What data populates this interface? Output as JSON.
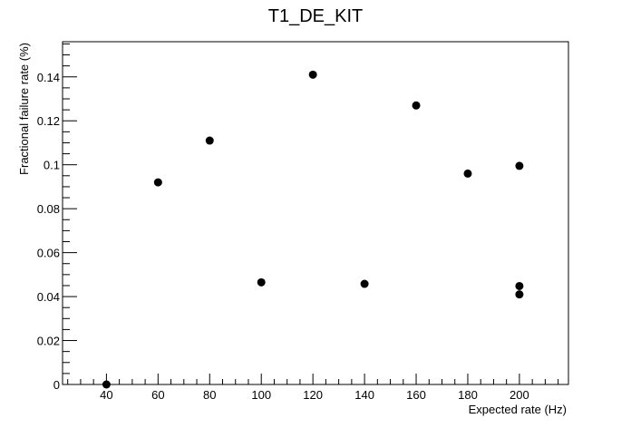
{
  "chart_data": {
    "type": "scatter",
    "title": "T1_DE_KIT",
    "xlabel": "Expected rate (Hz)",
    "ylabel": "Fractional failure rate (%)",
    "xlim": [
      23,
      219
    ],
    "ylim": [
      0,
      0.156
    ],
    "x_ticks": [
      40,
      60,
      80,
      100,
      120,
      140,
      160,
      180,
      200
    ],
    "x_tick_labels": [
      "40",
      "60",
      "80",
      "100",
      "120",
      "140",
      "160",
      "180",
      "200"
    ],
    "y_ticks": [
      0,
      0.02,
      0.04,
      0.06,
      0.08,
      0.1,
      0.12,
      0.14
    ],
    "y_tick_labels": [
      "0",
      "0.02",
      "0.04",
      "0.06",
      "0.08",
      "0.1",
      "0.12",
      "0.14"
    ],
    "grid": false,
    "legend": "none",
    "marker_color": "#000000",
    "points": [
      {
        "x": 40,
        "y": 0.0
      },
      {
        "x": 60,
        "y": 0.092
      },
      {
        "x": 80,
        "y": 0.111
      },
      {
        "x": 100,
        "y": 0.0465
      },
      {
        "x": 120,
        "y": 0.141
      },
      {
        "x": 140,
        "y": 0.0458
      },
      {
        "x": 160,
        "y": 0.127
      },
      {
        "x": 180,
        "y": 0.096
      },
      {
        "x": 200,
        "y": 0.0995
      },
      {
        "x": 200,
        "y": 0.0448
      },
      {
        "x": 200,
        "y": 0.041
      }
    ]
  }
}
